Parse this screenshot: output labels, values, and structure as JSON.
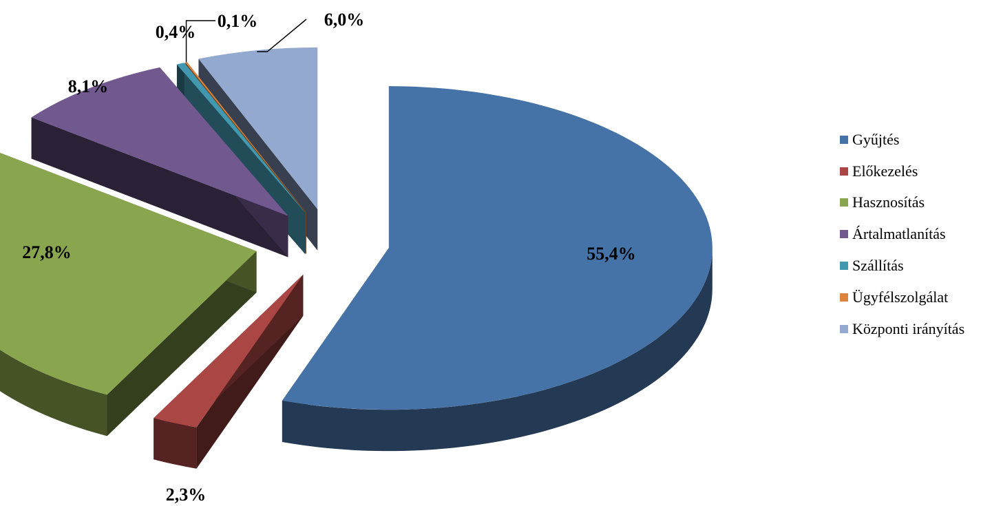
{
  "chart_data": {
    "type": "pie",
    "title": "",
    "legend_position": "right",
    "slices": [
      {
        "name": "Gyűjtés",
        "value": 55.4,
        "label": "55,4%",
        "color": "#4572A7"
      },
      {
        "name": "Előkezelés",
        "value": 2.3,
        "label": "2,3%",
        "color": "#AA4643"
      },
      {
        "name": "Hasznosítás",
        "value": 27.8,
        "label": "27,8%",
        "color": "#89A54E"
      },
      {
        "name": "Ártalmatlanítás",
        "value": 8.1,
        "label": "8,1%",
        "color": "#71588F"
      },
      {
        "name": "Szállítás",
        "value": 0.4,
        "label": "0,4%",
        "color": "#4198AF"
      },
      {
        "name": "Ügyfélszolgálat",
        "value": 0.1,
        "label": "0,1%",
        "color": "#DB843D"
      },
      {
        "name": "Központi irányítás",
        "value": 6.0,
        "label": "6,0%",
        "color": "#93A9CF"
      }
    ]
  }
}
